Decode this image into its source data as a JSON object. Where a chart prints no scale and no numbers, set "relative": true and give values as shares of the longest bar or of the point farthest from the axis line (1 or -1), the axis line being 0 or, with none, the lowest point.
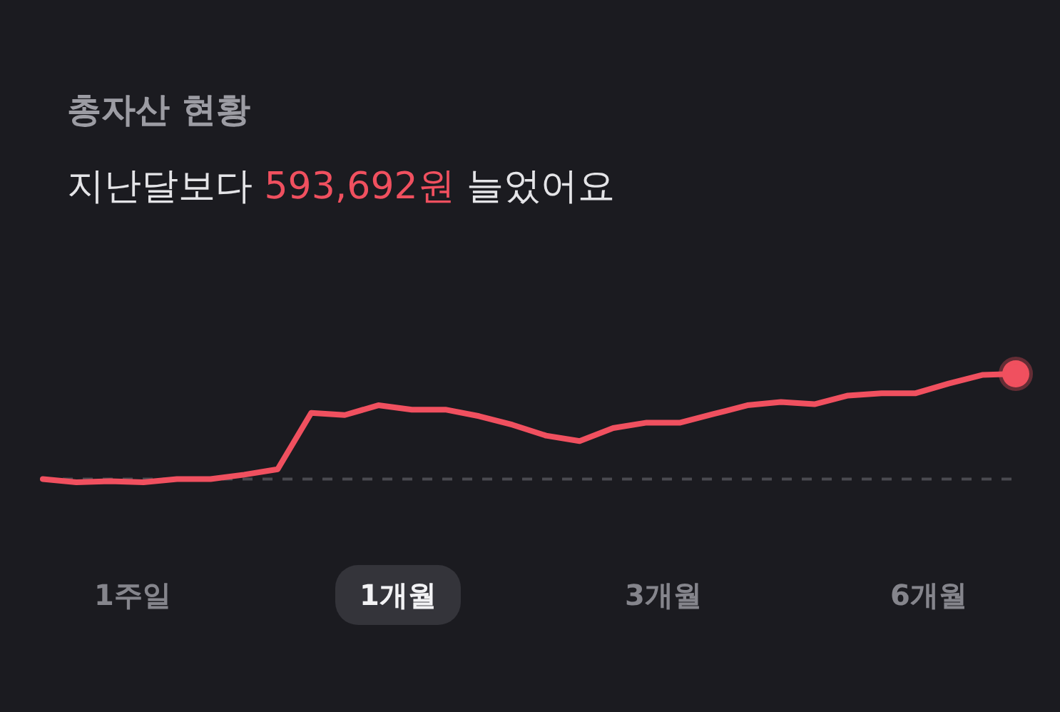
{
  "chart_data": {
    "type": "line",
    "title": "총자산 현황",
    "subtitle": "지난달보다 593,692원 늘었어요",
    "categories": [
      null,
      null,
      null,
      null,
      null,
      null,
      null,
      null,
      null,
      null,
      null,
      null,
      null,
      null,
      null,
      null,
      null,
      null,
      null,
      null,
      null,
      null,
      null,
      null,
      null,
      null,
      null,
      null,
      null,
      null
    ],
    "relative": true,
    "series": [
      {
        "color": "#f0505f",
        "values": [
          0.03,
          0,
          0.01,
          0,
          0.03,
          0.03,
          0.07,
          0.12,
          0.64,
          0.62,
          0.71,
          0.67,
          0.67,
          0.61,
          0.53,
          0.43,
          0.38,
          0.5,
          0.55,
          0.55,
          0.63,
          0.71,
          0.74,
          0.72,
          0.8,
          0.82,
          0.82,
          0.91,
          0.99,
          1
        ]
      },
      {
        "color": "#f0505f",
        "marker": "circle",
        "values": [
          null,
          null,
          null,
          null,
          null,
          null,
          null,
          null,
          null,
          null,
          null,
          null,
          null,
          null,
          null,
          null,
          null,
          null,
          null,
          null,
          null,
          null,
          null,
          null,
          null,
          null,
          null,
          null,
          null,
          1
        ]
      }
    ],
    "ref_lines": [
      {
        "axis": "y",
        "value": 0.03,
        "color": "#4a4a50",
        "line_style": "dashed"
      }
    ],
    "annotations": [
      "1주일",
      "1개월",
      "3개월",
      "6개월"
    ],
    "marker": "none",
    "line_style": "solid"
  }
}
